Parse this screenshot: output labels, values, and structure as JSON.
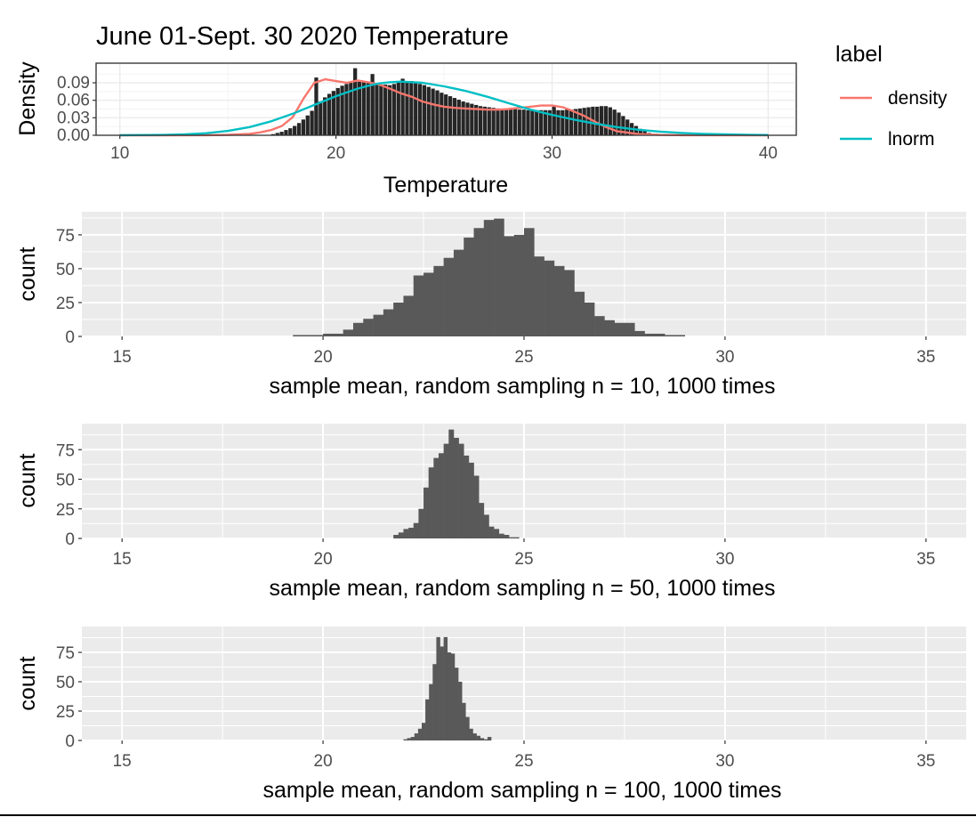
{
  "chart_data": [
    {
      "type": "bar",
      "title": "June 01-Sept. 30 2020 Temperature",
      "xlabel": "Temperature",
      "ylabel": "Density",
      "xlim": [
        8.9,
        41.3
      ],
      "ylim": [
        0,
        0.1236
      ],
      "x_ticks": [
        10,
        20,
        30,
        40
      ],
      "y_ticks": [
        0.0,
        0.03,
        0.06,
        0.09
      ],
      "y_tick_labels": [
        "0.00",
        "0.03",
        "0.06",
        "0.09"
      ],
      "theme": "bw",
      "grid": true,
      "legend": {
        "title": "label",
        "placement": "right",
        "entries": [
          {
            "name": "density",
            "color": "#F8766D"
          },
          {
            "name": "lnorm",
            "color": "#00BFC4"
          }
        ]
      },
      "histogram": {
        "bin_width": 0.2,
        "start": 17.0,
        "color": "#262626",
        "values": [
          0.002,
          0.004,
          0.006,
          0.009,
          0.012,
          0.016,
          0.021,
          0.027,
          0.034,
          0.042,
          0.05,
          0.058,
          0.065,
          0.071,
          0.076,
          0.081,
          0.085,
          0.088,
          0.09,
          0.091,
          0.092,
          0.091,
          0.09,
          0.089,
          0.088,
          0.087,
          0.087,
          0.086,
          0.088,
          0.09,
          0.097,
          0.092,
          0.093,
          0.09,
          0.088,
          0.086,
          0.083,
          0.08,
          0.077,
          0.073,
          0.07,
          0.067,
          0.064,
          0.061,
          0.058,
          0.056,
          0.054,
          0.052,
          0.05,
          0.049,
          0.048,
          0.047,
          0.046,
          0.045,
          0.045,
          0.045,
          0.045,
          0.044,
          0.044,
          0.043,
          0.043,
          0.043,
          0.043,
          0.043,
          0.043,
          0.043,
          0.043,
          0.043,
          0.044,
          0.044,
          0.045,
          0.046,
          0.047,
          0.048,
          0.049,
          0.049,
          0.05,
          0.05,
          0.048,
          0.044,
          0.039,
          0.033,
          0.027,
          0.021,
          0.016,
          0.011,
          0.007,
          0.004,
          0.002,
          0.001
        ],
        "spikes": [
          {
            "x": 19.0,
            "value": 0.099
          },
          {
            "x": 20.8,
            "value": 0.115
          },
          {
            "x": 21.6,
            "value": 0.105
          },
          {
            "x": 30.0,
            "value": 0.052
          }
        ]
      },
      "series": [
        {
          "name": "density",
          "color": "#F8766D",
          "x": [
            10,
            12,
            14,
            15,
            16,
            16.5,
            17,
            17.5,
            18,
            18.5,
            19,
            19.5,
            20,
            20.5,
            21,
            21.5,
            22,
            22.5,
            23,
            23.5,
            24,
            24.5,
            25,
            25.5,
            26,
            26.5,
            27,
            27.5,
            28,
            28.5,
            29,
            29.5,
            30,
            30.5,
            31,
            31.5,
            32,
            32.5,
            33,
            34,
            35,
            36,
            40
          ],
          "y": [
            0,
            0,
            0.0002,
            0.0008,
            0.0025,
            0.005,
            0.009,
            0.016,
            0.031,
            0.063,
            0.09,
            0.096,
            0.093,
            0.09,
            0.094,
            0.091,
            0.087,
            0.08,
            0.072,
            0.066,
            0.058,
            0.053,
            0.049,
            0.047,
            0.046,
            0.045,
            0.044,
            0.044,
            0.045,
            0.047,
            0.049,
            0.051,
            0.051,
            0.048,
            0.041,
            0.033,
            0.023,
            0.014,
            0.007,
            0.002,
            0.0006,
            0.0002,
            0
          ]
        },
        {
          "name": "lnorm",
          "color": "#00BFC4",
          "x": [
            10,
            12,
            13,
            14,
            15,
            16,
            17,
            18,
            19,
            20,
            21,
            21.5,
            22,
            22.5,
            23,
            24,
            25,
            26,
            27,
            28,
            29,
            30,
            31,
            32,
            33,
            34,
            35,
            36,
            37,
            38,
            39,
            40
          ],
          "y": [
            0.0001,
            0.0006,
            0.0015,
            0.0035,
            0.0075,
            0.014,
            0.024,
            0.037,
            0.052,
            0.067,
            0.08,
            0.085,
            0.089,
            0.091,
            0.092,
            0.09,
            0.084,
            0.076,
            0.066,
            0.055,
            0.044,
            0.035,
            0.027,
            0.02,
            0.014,
            0.0095,
            0.0063,
            0.004,
            0.0025,
            0.0015,
            0.0009,
            0.0005
          ]
        }
      ]
    },
    {
      "type": "bar",
      "xlabel": "sample mean, random sampling n = 10, 1000 times",
      "ylabel": "count",
      "xlim": [
        14.0,
        36.0
      ],
      "ylim": [
        0,
        92
      ],
      "x_ticks": [
        15,
        20,
        25,
        30,
        35
      ],
      "y_ticks": [
        0,
        25,
        50,
        75
      ],
      "grid": true,
      "bin_width": 0.25,
      "start": 19.25,
      "bar_color": "#595959",
      "values": [
        1,
        1,
        1,
        2,
        2,
        5,
        10,
        13,
        16,
        20,
        25,
        30,
        45,
        47,
        52,
        58,
        64,
        73,
        80,
        86,
        87,
        74,
        75,
        80,
        59,
        56,
        52,
        49,
        33,
        25,
        15,
        12,
        10,
        10,
        4,
        2,
        2,
        1,
        1,
        0,
        0
      ]
    },
    {
      "type": "bar",
      "xlabel": "sample mean, random sampling n = 50, 1000 times",
      "ylabel": "count",
      "xlim": [
        14.0,
        36.0
      ],
      "ylim": [
        0,
        97
      ],
      "x_ticks": [
        15,
        20,
        25,
        30,
        35
      ],
      "y_ticks": [
        0,
        25,
        50,
        75
      ],
      "grid": true,
      "bin_width": 0.125,
      "start": 21.75,
      "bar_color": "#595959",
      "values": [
        3,
        5,
        8,
        9,
        13,
        25,
        43,
        60,
        68,
        72,
        80,
        92,
        85,
        80,
        70,
        64,
        53,
        30,
        20,
        10,
        8,
        4,
        3,
        1,
        1,
        0
      ]
    },
    {
      "type": "bar",
      "xlabel": "sample mean, random sampling n = 100, 1000 times",
      "ylabel": "count",
      "xlim": [
        14.0,
        36.0
      ],
      "ylim": [
        0,
        97
      ],
      "x_ticks": [
        15,
        20,
        25,
        30,
        35
      ],
      "y_ticks": [
        0,
        25,
        50,
        75
      ],
      "grid": true,
      "bin_width": 0.0909,
      "start": 22.0,
      "bar_color": "#595959",
      "values": [
        1,
        2,
        3,
        6,
        10,
        15,
        35,
        48,
        65,
        88,
        80,
        88,
        75,
        74,
        62,
        50,
        32,
        20,
        10,
        6,
        4,
        2,
        1,
        3
      ]
    }
  ]
}
